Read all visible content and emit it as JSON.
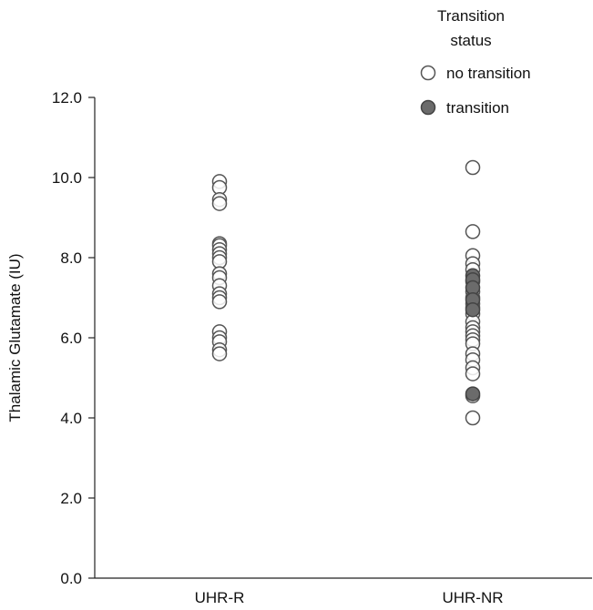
{
  "chart_data": {
    "type": "scatter",
    "ylabel": "Thalamic Glutamate (IU)",
    "ylim": [
      0,
      12
    ],
    "yticks": [
      "0.0",
      "2.0",
      "4.0",
      "6.0",
      "8.0",
      "10.0",
      "12.0"
    ],
    "categories": [
      "UHR-R",
      "UHR-NR"
    ],
    "legend": {
      "title_line1": "Transition",
      "title_line2": "status",
      "position": "top-right",
      "items": [
        {
          "label": "no transition",
          "fill": "#ffffff"
        },
        {
          "label": "transition",
          "fill": "#6b6b6b"
        }
      ]
    },
    "series": [
      {
        "name": "no transition",
        "fill": "#ffffff",
        "points": {
          "UHR-R": [
            9.9,
            9.75,
            9.45,
            9.35,
            8.35,
            8.3,
            8.2,
            8.1,
            8.0,
            7.9,
            7.6,
            7.5,
            7.3,
            7.1,
            7.0,
            6.9,
            6.15,
            6.0,
            5.9,
            5.7,
            5.6
          ],
          "UHR-NR": [
            10.25,
            8.65,
            8.05,
            7.85,
            7.7,
            7.4,
            7.15,
            7.0,
            6.85,
            6.75,
            6.6,
            6.4,
            6.25,
            6.15,
            6.05,
            5.95,
            5.85,
            5.6,
            5.45,
            5.25,
            5.1,
            4.55,
            4.0
          ]
        }
      },
      {
        "name": "transition",
        "fill": "#6b6b6b",
        "points": {
          "UHR-R": [],
          "UHR-NR": [
            7.55,
            7.45,
            7.25,
            6.95,
            6.7,
            4.6
          ]
        }
      }
    ],
    "grid": false
  }
}
